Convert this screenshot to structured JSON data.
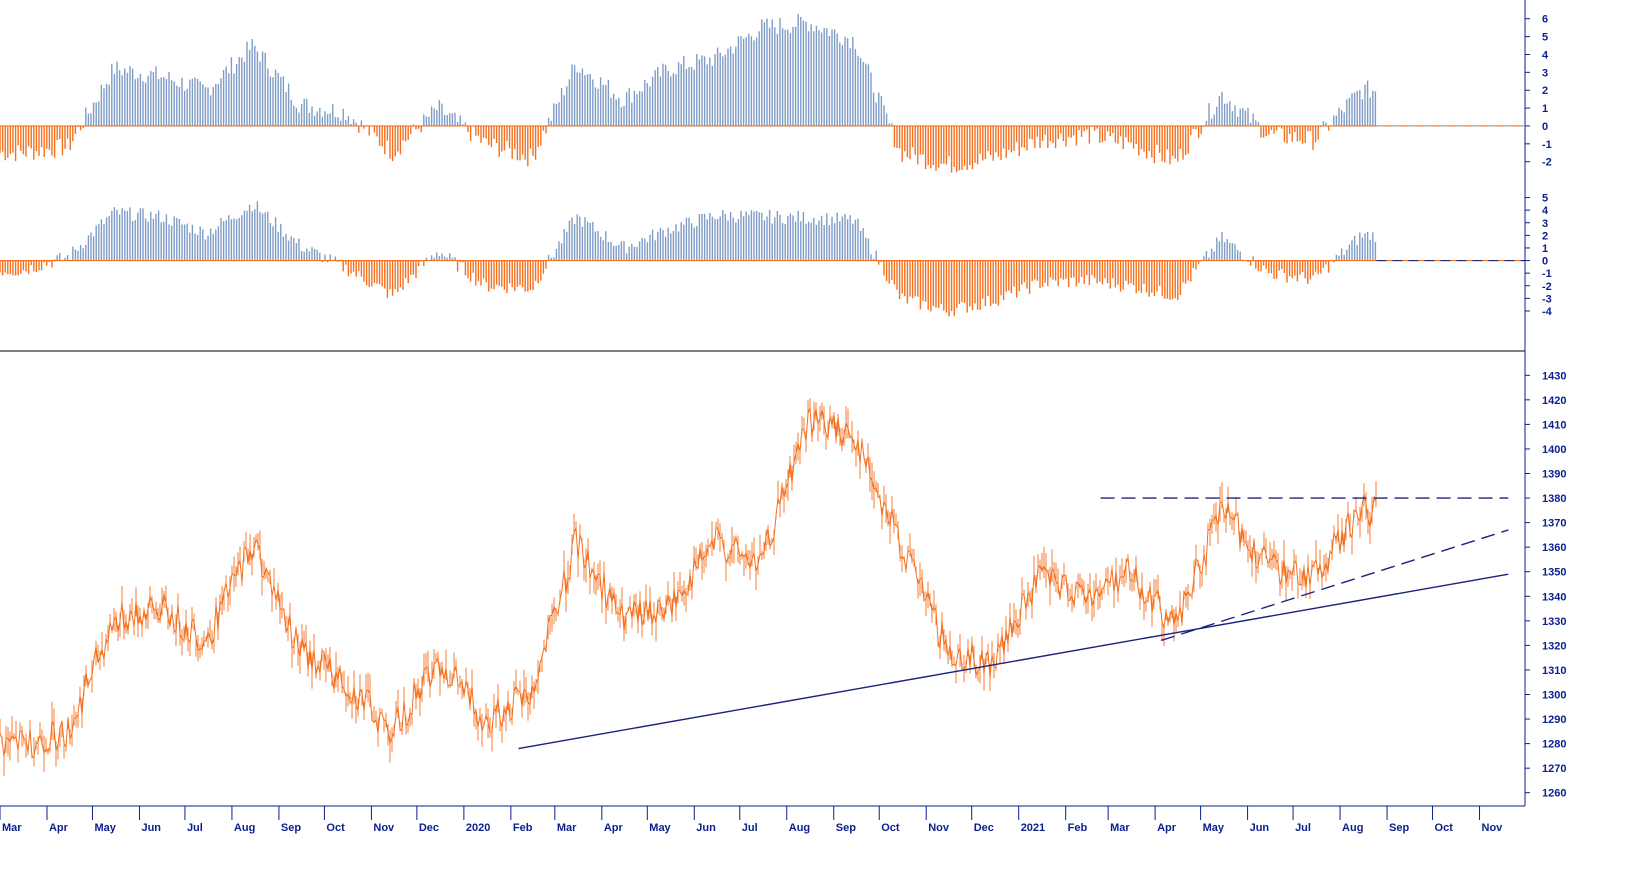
{
  "colors": {
    "positive_bar": "#7f9cc6",
    "negative_bar": "#f4701e",
    "price_line": "#f4701e",
    "trendline": "#1a237e",
    "axis_text": "#0b1f8f",
    "separator": "#000000",
    "zero_line_top": "#9e9e9e"
  },
  "chart_data": [
    {
      "type": "bar",
      "panel": "oscillator-1",
      "ylim": [
        -2.8,
        6.6
      ],
      "y_ticks": [
        "6",
        "5",
        "4",
        "3",
        "2",
        "1",
        "0",
        "-1",
        "-2"
      ],
      "grid": false,
      "series": [
        {
          "values_description": "weekly-ish oscillator values (approximate)",
          "x": [
            "2019-03",
            "2019-04",
            "2019-05",
            "2019-06",
            "2019-07",
            "2019-08",
            "2019-09",
            "2019-10",
            "2019-11",
            "2019-12",
            "2020-01",
            "2020-02",
            "2020-03",
            "2020-04",
            "2020-05",
            "2020-06",
            "2020-07",
            "2020-08",
            "2020-09",
            "2020-10",
            "2020-11",
            "2020-12",
            "2021-01",
            "2021-02",
            "2021-03",
            "2021-04",
            "2021-05",
            "2021-06",
            "2021-07",
            "2021-08"
          ],
          "values": [
            -1.5,
            -1.2,
            3.2,
            2.8,
            2.0,
            4.5,
            1.2,
            0.8,
            -1.5,
            1.0,
            -1.0,
            -1.8,
            3.5,
            1.5,
            3.2,
            3.8,
            5.5,
            5.8,
            4.8,
            -1.5,
            -2.2,
            -1.8,
            -0.8,
            -0.5,
            -1.0,
            -2.0,
            1.8,
            -0.5,
            -0.8,
            2.0
          ]
        }
      ]
    },
    {
      "type": "bar",
      "panel": "oscillator-2",
      "ylim": [
        -4.4,
        5.6
      ],
      "y_ticks": [
        "5",
        "4",
        "3",
        "2",
        "1",
        "0",
        "-1",
        "-2",
        "-3",
        "-4"
      ],
      "grid": false,
      "series": [
        {
          "values_description": "weekly-ish oscillator values (approximate)",
          "x": [
            "2019-03",
            "2019-04",
            "2019-05",
            "2019-06",
            "2019-07",
            "2019-08",
            "2019-09",
            "2019-10",
            "2019-11",
            "2019-12",
            "2020-01",
            "2020-02",
            "2020-03",
            "2020-04",
            "2020-05",
            "2020-06",
            "2020-07",
            "2020-08",
            "2020-09",
            "2020-10",
            "2020-11",
            "2020-12",
            "2021-01",
            "2021-02",
            "2021-03",
            "2021-04",
            "2021-05",
            "2021-06",
            "2021-07",
            "2021-08"
          ],
          "values": [
            -0.8,
            0.3,
            3.8,
            3.5,
            2.2,
            4.5,
            1.2,
            -0.6,
            -2.8,
            0.8,
            -2.0,
            -2.2,
            3.5,
            1.0,
            2.5,
            3.6,
            3.5,
            3.4,
            3.2,
            -3.0,
            -4.0,
            -3.2,
            -1.8,
            -1.6,
            -2.0,
            -2.8,
            1.8,
            -1.0,
            -1.5,
            2.0
          ]
        }
      ]
    },
    {
      "type": "line",
      "panel": "price",
      "ylim": [
        1255,
        1435
      ],
      "y_ticks": [
        "1430",
        "1420",
        "1410",
        "1400",
        "1390",
        "1380",
        "1370",
        "1360",
        "1350",
        "1340",
        "1330",
        "1320",
        "1310",
        "1300",
        "1290",
        "1280",
        "1270",
        "1260"
      ],
      "x_ticks": [
        "Mar",
        "Apr",
        "May",
        "Jun",
        "Jul",
        "Aug",
        "Sep",
        "Oct",
        "Nov",
        "Dec",
        "2020",
        "Feb",
        "Mar",
        "Apr",
        "May",
        "Jun",
        "Jul",
        "Aug",
        "Sep",
        "Oct",
        "Nov",
        "Dec",
        "2021",
        "Feb",
        "Mar",
        "Apr",
        "May",
        "Jun",
        "Jul",
        "Aug",
        "Sep",
        "Oct",
        "Nov"
      ],
      "grid": false,
      "series": [
        {
          "x": [
            "2019-03",
            "2019-04",
            "2019-05",
            "2019-06",
            "2019-07",
            "2019-08",
            "2019-09",
            "2019-10",
            "2019-11",
            "2019-12",
            "2020-01",
            "2020-02",
            "2020-03",
            "2020-04",
            "2020-05",
            "2020-06",
            "2020-07",
            "2020-08",
            "2020-09",
            "2020-10",
            "2020-11",
            "2020-12",
            "2021-01",
            "2021-02",
            "2021-03",
            "2021-04",
            "2021-05",
            "2021-06",
            "2021-07",
            "2021-08"
          ],
          "values": [
            1280,
            1285,
            1330,
            1335,
            1322,
            1362,
            1318,
            1305,
            1285,
            1315,
            1290,
            1300,
            1362,
            1330,
            1335,
            1362,
            1352,
            1412,
            1405,
            1362,
            1318,
            1312,
            1348,
            1340,
            1350,
            1328,
            1375,
            1352,
            1348,
            1375
          ]
        }
      ],
      "annotations": [
        {
          "kind": "trendline-solid",
          "from": [
            "2020-02-06",
            1278
          ],
          "to": [
            "2021-11-20",
            1349
          ]
        },
        {
          "kind": "trendline-dashed",
          "from": [
            "2021-04-05",
            1322
          ],
          "to": [
            "2021-11-20",
            1367
          ]
        },
        {
          "kind": "resistance-dashed",
          "from": [
            "2021-02-24",
            1380
          ],
          "to": [
            "2021-11-20",
            1380
          ]
        }
      ]
    }
  ]
}
